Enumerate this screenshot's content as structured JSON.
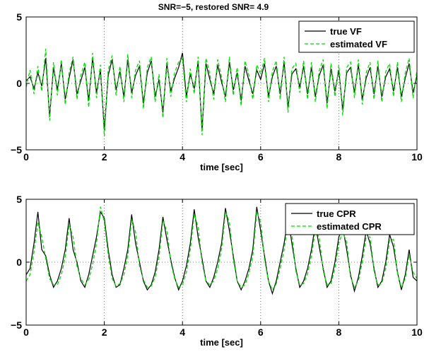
{
  "figure": {
    "title": "SNR=−5, restored SNR= 4.9"
  },
  "chart_data": [
    {
      "type": "line",
      "title": "SNR=−5, restored SNR= 4.9",
      "xlabel": "time [sec]",
      "ylabel": "",
      "xlim": [
        0,
        10
      ],
      "ylim": [
        -5,
        5
      ],
      "xticks": [
        "0",
        "2",
        "4",
        "6",
        "8",
        "10"
      ],
      "yticks": [
        "−5",
        "0",
        "5"
      ],
      "grid": "dotted",
      "legend_position": "top-right",
      "colors": {
        "true": "#000000",
        "estimated": "#00dd00"
      },
      "series": [
        {
          "name": "true VF",
          "x": [
            0,
            0.1,
            0.2,
            0.3,
            0.4,
            0.5,
            0.6,
            0.7,
            0.8,
            0.9,
            1.0,
            1.1,
            1.2,
            1.3,
            1.4,
            1.5,
            1.6,
            1.7,
            1.8,
            1.9,
            2.0,
            2.1,
            2.2,
            2.3,
            2.4,
            2.5,
            2.6,
            2.7,
            2.8,
            2.9,
            3.0,
            3.1,
            3.2,
            3.3,
            3.4,
            3.5,
            3.6,
            3.7,
            3.8,
            3.9,
            4.0,
            4.1,
            4.2,
            4.3,
            4.4,
            4.5,
            4.6,
            4.7,
            4.8,
            4.9,
            5.0,
            5.1,
            5.2,
            5.3,
            5.4,
            5.5,
            5.6,
            5.7,
            5.8,
            5.9,
            6.0,
            6.1,
            6.2,
            6.3,
            6.4,
            6.5,
            6.6,
            6.7,
            6.8,
            6.9,
            7.0,
            7.1,
            7.2,
            7.3,
            7.4,
            7.5,
            7.6,
            7.7,
            7.8,
            7.9,
            8.0,
            8.1,
            8.2,
            8.3,
            8.4,
            8.5,
            8.6,
            8.7,
            8.8,
            8.9,
            9.0,
            9.1,
            9.2,
            9.3,
            9.4,
            9.5,
            9.6,
            9.7,
            9.8,
            9.9,
            10.0
          ],
          "y": [
            0.2,
            0.5,
            -0.4,
            0.8,
            -0.2,
            1.9,
            -2.5,
            1.2,
            -0.5,
            1.5,
            -1.2,
            0.4,
            1.8,
            -0.8,
            0.2,
            1.2,
            -1.3,
            1.9,
            -0.7,
            1.0,
            -3.5,
            0.6,
            1.8,
            -0.5,
            0.9,
            -1.0,
            1.8,
            -0.7,
            0.6,
            1.3,
            -1.5,
            0.8,
            1.7,
            -1.0,
            0.3,
            -2.2,
            1.5,
            -0.6,
            0.4,
            1.2,
            2.3,
            -1.0,
            0.7,
            -0.4,
            1.6,
            -3.5,
            1.5,
            0.3,
            -0.8,
            1.4,
            0.1,
            -1.0,
            1.6,
            -0.5,
            0.8,
            -1.3,
            1.3,
            0.2,
            -0.8,
            1.0,
            0.3,
            1.5,
            -1.0,
            0.5,
            1.3,
            -0.8,
            1.6,
            -1.8,
            0.7,
            1.1,
            -0.3,
            1.3,
            -0.8,
            1.2,
            -1.0,
            0.6,
            1.4,
            -1.5,
            1.1,
            -0.6,
            1.0,
            -2.0,
            0.8,
            1.2,
            -0.7,
            1.4,
            -1.2,
            0.4,
            1.2,
            -0.8,
            1.3,
            -1.0,
            0.5,
            1.1,
            -0.6,
            1.2,
            -1.0,
            0.4,
            1.5,
            -0.7,
            0.6
          ]
        },
        {
          "name": "estimated VF",
          "x": [
            0,
            0.1,
            0.2,
            0.3,
            0.4,
            0.5,
            0.6,
            0.7,
            0.8,
            0.9,
            1.0,
            1.1,
            1.2,
            1.3,
            1.4,
            1.5,
            1.6,
            1.7,
            1.8,
            1.9,
            2.0,
            2.1,
            2.2,
            2.3,
            2.4,
            2.5,
            2.6,
            2.7,
            2.8,
            2.9,
            3.0,
            3.1,
            3.2,
            3.3,
            3.4,
            3.5,
            3.6,
            3.7,
            3.8,
            3.9,
            4.0,
            4.1,
            4.2,
            4.3,
            4.4,
            4.5,
            4.6,
            4.7,
            4.8,
            4.9,
            5.0,
            5.1,
            5.2,
            5.3,
            5.4,
            5.5,
            5.6,
            5.7,
            5.8,
            5.9,
            6.0,
            6.1,
            6.2,
            6.3,
            6.4,
            6.5,
            6.6,
            6.7,
            6.8,
            6.9,
            7.0,
            7.1,
            7.2,
            7.3,
            7.4,
            7.5,
            7.6,
            7.7,
            7.8,
            7.9,
            8.0,
            8.1,
            8.2,
            8.3,
            8.4,
            8.5,
            8.6,
            8.7,
            8.8,
            8.9,
            9.0,
            9.1,
            9.2,
            9.3,
            9.4,
            9.5,
            9.6,
            9.7,
            9.8,
            9.9,
            10.0
          ],
          "y": [
            -0.3,
            1.0,
            -0.8,
            1.3,
            -0.6,
            2.6,
            -2.8,
            1.6,
            -0.9,
            1.8,
            -1.6,
            0.8,
            2.0,
            -1.2,
            0.6,
            1.6,
            -1.8,
            2.3,
            -1.1,
            1.4,
            -4.0,
            1.0,
            2.1,
            -0.9,
            1.3,
            -1.4,
            2.2,
            -1.1,
            1.0,
            1.7,
            -1.9,
            1.2,
            2.0,
            -1.4,
            0.7,
            -2.6,
            1.9,
            -1.0,
            0.8,
            1.6,
            1.9,
            -1.4,
            1.1,
            -0.8,
            2.0,
            -3.9,
            1.9,
            0.7,
            -1.2,
            1.8,
            0.5,
            -1.4,
            2.0,
            -0.9,
            1.2,
            -1.7,
            1.7,
            0.6,
            -1.2,
            1.4,
            0.7,
            1.9,
            -1.4,
            0.9,
            1.7,
            -1.2,
            2.0,
            -2.2,
            1.1,
            1.5,
            -0.7,
            1.7,
            -1.2,
            1.6,
            -1.4,
            1.0,
            1.8,
            -1.9,
            1.5,
            -1.0,
            1.4,
            -2.4,
            1.2,
            1.6,
            -1.1,
            1.8,
            -1.6,
            0.8,
            1.6,
            -1.2,
            1.7,
            -1.4,
            0.9,
            1.5,
            -1.0,
            1.6,
            -1.4,
            0.8,
            1.9,
            -1.1,
            1.0
          ]
        }
      ]
    },
    {
      "type": "line",
      "title": "",
      "xlabel": "time [sec]",
      "ylabel": "",
      "xlim": [
        0,
        10
      ],
      "ylim": [
        -5,
        5
      ],
      "xticks": [
        "0",
        "2",
        "4",
        "6",
        "8",
        "10"
      ],
      "yticks": [
        "−5",
        "0",
        "5"
      ],
      "grid": "dotted",
      "legend_position": "top-right",
      "colors": {
        "true": "#000000",
        "estimated": "#00dd00"
      },
      "series": [
        {
          "name": "true CPR",
          "x": [
            0,
            0.1,
            0.2,
            0.3,
            0.4,
            0.5,
            0.6,
            0.7,
            0.8,
            0.9,
            1.0,
            1.1,
            1.2,
            1.3,
            1.4,
            1.5,
            1.6,
            1.7,
            1.8,
            1.9,
            2.0,
            2.1,
            2.2,
            2.3,
            2.4,
            2.5,
            2.6,
            2.7,
            2.8,
            2.9,
            3.0,
            3.1,
            3.2,
            3.3,
            3.4,
            3.5,
            3.6,
            3.7,
            3.8,
            3.9,
            4.0,
            4.1,
            4.2,
            4.3,
            4.4,
            4.5,
            4.6,
            4.7,
            4.8,
            4.9,
            5.0,
            5.1,
            5.2,
            5.3,
            5.4,
            5.5,
            5.6,
            5.7,
            5.8,
            5.9,
            6.0,
            6.1,
            6.2,
            6.3,
            6.4,
            6.5,
            6.6,
            6.7,
            6.8,
            6.9,
            7.0,
            7.1,
            7.2,
            7.3,
            7.4,
            7.5,
            7.6,
            7.7,
            7.8,
            7.9,
            8.0,
            8.1,
            8.2,
            8.3,
            8.4,
            8.5,
            8.6,
            8.7,
            8.8,
            8.9,
            9.0,
            9.1,
            9.2,
            9.3,
            9.4,
            9.5,
            9.6,
            9.7,
            9.8,
            9.9,
            10.0
          ],
          "y": [
            -1.0,
            -0.5,
            1.5,
            4.0,
            1.0,
            0.5,
            -1.0,
            -2.0,
            -1.5,
            -0.5,
            1.0,
            3.5,
            1.0,
            0.0,
            -1.5,
            -2.0,
            -1.0,
            0.5,
            2.0,
            4.0,
            3.5,
            1.0,
            -1.0,
            -2.0,
            -1.8,
            -0.5,
            1.0,
            3.8,
            1.5,
            0.0,
            -1.5,
            -2.2,
            -1.8,
            -0.8,
            1.0,
            3.6,
            1.8,
            0.2,
            -1.2,
            -2.2,
            -1.5,
            -0.3,
            1.5,
            4.2,
            2.0,
            0.3,
            -1.5,
            -2.0,
            -1.2,
            0.0,
            1.5,
            4.3,
            2.5,
            0.5,
            -1.5,
            -2.2,
            -1.5,
            -0.5,
            1.0,
            4.4,
            2.5,
            0.5,
            -1.5,
            -2.5,
            -1.5,
            0.0,
            1.5,
            3.5,
            1.5,
            -0.5,
            -2.0,
            -1.5,
            -0.5,
            1.0,
            3.0,
            1.2,
            -0.5,
            -2.0,
            -1.5,
            0.0,
            2.0,
            2.8,
            1.0,
            -1.0,
            -2.3,
            -1.2,
            0.5,
            2.5,
            1.5,
            -0.5,
            -2.0,
            -1.5,
            0.0,
            2.2,
            1.2,
            -0.8,
            -2.2,
            -1.0,
            1.0,
            -1.2,
            -1.5
          ]
        },
        {
          "name": "estimated CPR",
          "x": [
            0,
            0.1,
            0.2,
            0.3,
            0.4,
            0.5,
            0.6,
            0.7,
            0.8,
            0.9,
            1.0,
            1.1,
            1.2,
            1.3,
            1.4,
            1.5,
            1.6,
            1.7,
            1.8,
            1.9,
            2.0,
            2.1,
            2.2,
            2.3,
            2.4,
            2.5,
            2.6,
            2.7,
            2.8,
            2.9,
            3.0,
            3.1,
            3.2,
            3.3,
            3.4,
            3.5,
            3.6,
            3.7,
            3.8,
            3.9,
            4.0,
            4.1,
            4.2,
            4.3,
            4.4,
            4.5,
            4.6,
            4.7,
            4.8,
            4.9,
            5.0,
            5.1,
            5.2,
            5.3,
            5.4,
            5.5,
            5.6,
            5.7,
            5.8,
            5.9,
            6.0,
            6.1,
            6.2,
            6.3,
            6.4,
            6.5,
            6.6,
            6.7,
            6.8,
            6.9,
            7.0,
            7.1,
            7.2,
            7.3,
            7.4,
            7.5,
            7.6,
            7.7,
            7.8,
            7.9,
            8.0,
            8.1,
            8.2,
            8.3,
            8.4,
            8.5,
            8.6,
            8.7,
            8.8,
            8.9,
            9.0,
            9.1,
            9.2,
            9.3,
            9.4,
            9.5,
            9.6,
            9.7,
            9.8,
            9.9,
            10.0
          ],
          "y": [
            -1.5,
            -1.0,
            0.8,
            3.2,
            2.0,
            0.3,
            -1.3,
            -1.8,
            -1.8,
            -1.0,
            0.4,
            3.0,
            2.0,
            -0.3,
            -1.3,
            -1.8,
            -1.4,
            -0.2,
            1.5,
            4.4,
            3.2,
            0.6,
            -1.3,
            -1.9,
            -1.7,
            -1.0,
            0.5,
            3.4,
            2.4,
            -0.3,
            -1.4,
            -2.0,
            -1.9,
            -1.2,
            0.4,
            3.3,
            2.5,
            0.0,
            -1.3,
            -2.0,
            -1.8,
            -0.8,
            1.0,
            3.8,
            2.8,
            0.0,
            -1.5,
            -1.8,
            -1.5,
            -0.5,
            1.0,
            4.0,
            3.2,
            0.2,
            -1.5,
            -2.0,
            -1.8,
            -0.9,
            0.5,
            4.0,
            3.2,
            0.2,
            -1.5,
            -2.2,
            -1.7,
            -0.5,
            1.0,
            3.2,
            2.2,
            -0.7,
            -1.8,
            -1.7,
            -0.9,
            0.5,
            2.6,
            1.9,
            -0.7,
            -1.8,
            -1.7,
            -0.5,
            1.5,
            2.4,
            1.6,
            -1.2,
            -2.0,
            -1.5,
            0.0,
            2.0,
            2.0,
            -0.7,
            -1.8,
            -1.7,
            -0.5,
            1.8,
            1.8,
            -0.9,
            -2.0,
            -1.3,
            0.6,
            -0.8,
            -1.3
          ]
        }
      ]
    }
  ]
}
